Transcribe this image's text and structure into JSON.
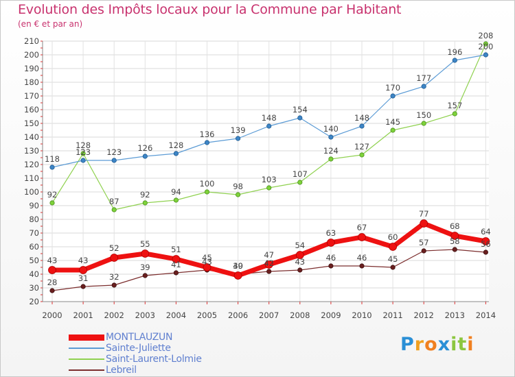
{
  "chart_data": {
    "type": "line",
    "title": "Evolution des Impôts locaux pour la Commune par Habitant",
    "subtitle": "(en € et par an)",
    "x": [
      "2000",
      "2001",
      "2002",
      "2003",
      "2004",
      "2005",
      "2006",
      "2007",
      "2008",
      "2009",
      "2010",
      "2011",
      "2012",
      "2013",
      "2014"
    ],
    "ylim": [
      20,
      210
    ],
    "yticks": [
      20,
      30,
      40,
      50,
      60,
      70,
      80,
      90,
      100,
      110,
      120,
      130,
      140,
      150,
      160,
      170,
      180,
      190,
      200,
      210
    ],
    "grid": true,
    "legend_position": "bottom-left",
    "series": [
      {
        "name": "MONTLAUZUN",
        "color": "#ee1111",
        "values": [
          43,
          43,
          52,
          55,
          51,
          45,
          39,
          47,
          54,
          63,
          67,
          60,
          77,
          68,
          64
        ]
      },
      {
        "name": "Sainte-Juliette",
        "color": "#5b9bd5",
        "values": [
          118,
          123,
          123,
          126,
          128,
          136,
          139,
          148,
          154,
          140,
          148,
          170,
          177,
          196,
          200
        ]
      },
      {
        "name": "Saint-Laurent-Lolmie",
        "color": "#8fd14f",
        "values": [
          92,
          128,
          87,
          92,
          94,
          100,
          98,
          103,
          107,
          124,
          127,
          145,
          150,
          157,
          208
        ]
      },
      {
        "name": "Lebreil",
        "color": "#7b2d2d",
        "values": [
          28,
          31,
          32,
          39,
          41,
          43,
          40,
          42,
          43,
          46,
          46,
          45,
          57,
          58,
          56
        ]
      }
    ]
  },
  "logo": {
    "text": "Proxiti",
    "letters": [
      "P",
      "r",
      "o",
      "x",
      "i",
      "t",
      "i"
    ],
    "colors": [
      "#2a8fd6",
      "#f0a020",
      "#f08020",
      "#2a8fd6",
      "#8cc63f",
      "#8cc63f",
      "#f08020"
    ]
  }
}
